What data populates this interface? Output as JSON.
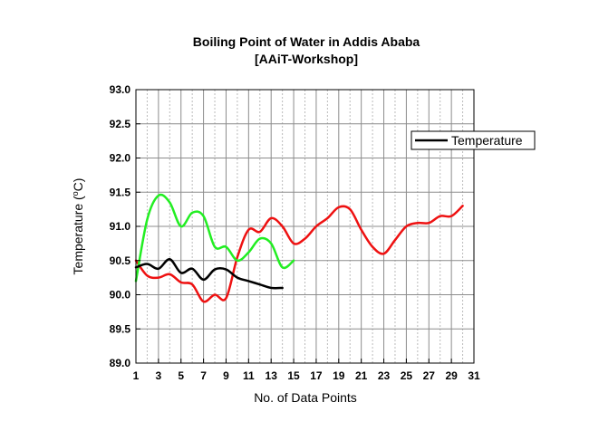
{
  "chart_data": {
    "type": "line",
    "title": "Boiling Point of Water in Addis Ababa",
    "subtitle": "[AAiT-Workshop]",
    "xlabel": "No. of Data Points",
    "ylabel_main": "Temperature (",
    "ylabel_sup": "o",
    "ylabel_end": "C)",
    "xlim": [
      1,
      31
    ],
    "ylim": [
      89.0,
      93.0
    ],
    "xticks": [
      1,
      3,
      5,
      7,
      9,
      11,
      13,
      15,
      17,
      19,
      21,
      23,
      25,
      27,
      29,
      31
    ],
    "xtick_labels": [
      "1",
      "3",
      "5",
      "7",
      "9",
      "11",
      "13",
      "15",
      "17",
      "19",
      "21",
      "23",
      "25",
      "27",
      "29",
      "31"
    ],
    "yticks": [
      89.0,
      89.5,
      90.0,
      90.5,
      91.0,
      91.5,
      92.0,
      92.5,
      93.0
    ],
    "ytick_labels": [
      "89.0",
      "89.5",
      "90.0",
      "90.5",
      "91.0",
      "91.5",
      "92.0",
      "92.5",
      "93.0"
    ],
    "grid": true,
    "legend": {
      "position": "top-right",
      "entries": [
        "Temperature"
      ]
    },
    "series": [
      {
        "name": "Temperature",
        "color": "#000000",
        "x": [
          1,
          2,
          3,
          4,
          5,
          6,
          7,
          8,
          9,
          10,
          11,
          12,
          13,
          14
        ],
        "values": [
          90.4,
          90.45,
          90.38,
          90.52,
          90.32,
          90.38,
          90.22,
          90.37,
          90.37,
          90.25,
          90.2,
          90.15,
          90.1,
          90.1
        ]
      },
      {
        "name": "",
        "color": "#ee1111",
        "x": [
          1,
          2,
          3,
          4,
          5,
          6,
          7,
          8,
          9,
          10,
          11,
          12,
          13,
          14,
          15,
          16,
          17,
          18,
          19,
          20,
          21,
          22,
          23,
          24,
          25,
          26,
          27,
          28,
          29,
          30
        ],
        "values": [
          90.5,
          90.28,
          90.25,
          90.3,
          90.18,
          90.15,
          89.9,
          90.0,
          89.95,
          90.55,
          90.95,
          90.92,
          91.12,
          91.0,
          90.75,
          90.82,
          91.0,
          91.12,
          91.28,
          91.25,
          90.95,
          90.7,
          90.6,
          90.8,
          91.0,
          91.05,
          91.05,
          91.15,
          91.15,
          91.3
        ]
      },
      {
        "name": "",
        "color": "#22ee22",
        "x": [
          1,
          2,
          3,
          4,
          5,
          6,
          7,
          8,
          9,
          10,
          11,
          12,
          13,
          14,
          15
        ],
        "values": [
          90.2,
          91.1,
          91.45,
          91.35,
          91.0,
          91.2,
          91.15,
          90.7,
          90.7,
          90.5,
          90.62,
          90.82,
          90.75,
          90.4,
          90.5
        ]
      }
    ]
  }
}
